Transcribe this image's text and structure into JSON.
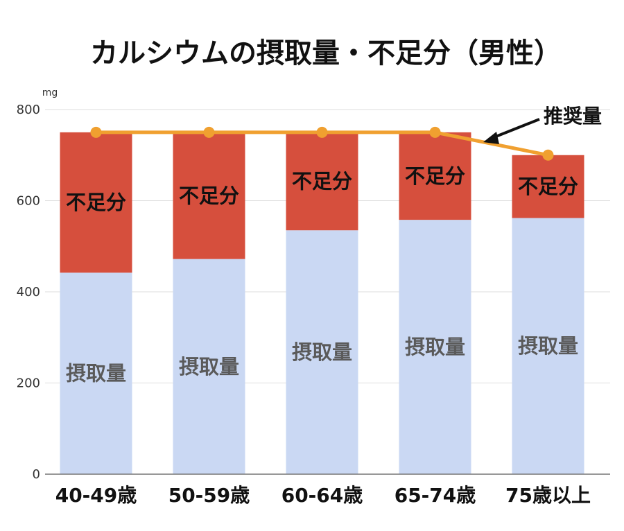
{
  "chart_data": {
    "type": "bar",
    "title": "カルシウムの摂取量・不足分（男性）",
    "unit": "mg",
    "categories": [
      "40-49歳",
      "50-59歳",
      "60-64歳",
      "65-74歳",
      "75歳以上"
    ],
    "series": [
      {
        "name": "摂取量",
        "values": [
          442,
          472,
          535,
          558,
          562
        ],
        "color": "#cad8f3"
      },
      {
        "name": "不足分",
        "values": [
          308,
          278,
          215,
          192,
          138
        ],
        "color": "#d64f3d"
      }
    ],
    "line_series": {
      "name": "推奨量",
      "values": [
        750,
        750,
        750,
        750,
        700
      ],
      "color": "#f0a030"
    },
    "ylim": [
      0,
      800
    ],
    "yticks": [
      0,
      200,
      400,
      600,
      800
    ],
    "grid": true,
    "stacked": true,
    "annotation": {
      "text": "推奨量",
      "points_to": "line"
    }
  }
}
